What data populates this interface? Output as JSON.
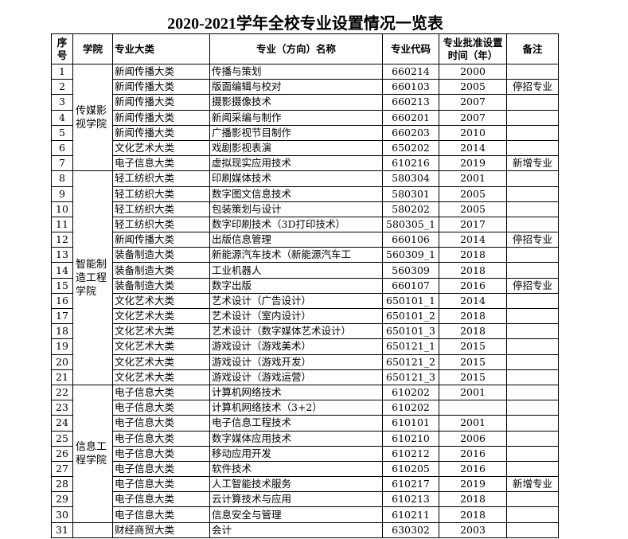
{
  "title": "2020-2021学年全校专业设置情况一览表",
  "headers": [
    "序号",
    "学院",
    "专业大类",
    "专业（方向）名称",
    "专业代码",
    "专业批准设置时间（年）",
    "备注"
  ],
  "colleges": [
    {
      "name": "传媒影视学院",
      "span": 7
    },
    {
      "name": "智能制造工程学院",
      "span": 14
    },
    {
      "name": "信息工程学院",
      "span": 9
    },
    {
      "name": "",
      "span": 1
    }
  ],
  "rows": [
    [
      "1",
      "新闻传播大类",
      "传播与策划",
      "660214",
      "2000",
      ""
    ],
    [
      "2",
      "新闻传播大类",
      "版面编辑与校对",
      "660103",
      "2005",
      "停招专业"
    ],
    [
      "3",
      "新闻传播大类",
      "摄影摄像技术",
      "660213",
      "2007",
      ""
    ],
    [
      "4",
      "新闻传播大类",
      "新闻采编与制作",
      "660201",
      "2007",
      ""
    ],
    [
      "5",
      "新闻传播大类",
      "广播影视节目制作",
      "660203",
      "2010",
      ""
    ],
    [
      "6",
      "文化艺术大类",
      "戏剧影视表演",
      "650202",
      "2014",
      ""
    ],
    [
      "7",
      "电子信息大类",
      "虚拟现实应用技术",
      "610216",
      "2019",
      "新增专业"
    ],
    [
      "8",
      "轻工纺织大类",
      "印刷媒体技术",
      "580304",
      "2001",
      ""
    ],
    [
      "9",
      "轻工纺织大类",
      "数字图文信息技术",
      "580301",
      "2005",
      ""
    ],
    [
      "10",
      "轻工纺织大类",
      "包装策划与设计",
      "580202",
      "2005",
      ""
    ],
    [
      "11",
      "轻工纺织大类",
      "数字印刷技术（3D打印技术）",
      "580305_1",
      "2017",
      ""
    ],
    [
      "12",
      "新闻传播大类",
      "出版信息管理",
      "660106",
      "2014",
      "停招专业"
    ],
    [
      "13",
      "装备制造大类",
      "新能源汽车技术（新能源汽车工",
      "560309_1",
      "2018",
      ""
    ],
    [
      "14",
      "装备制造大类",
      "工业机器人",
      "560309",
      "2018",
      ""
    ],
    [
      "15",
      "装备制造大类",
      "数字出版",
      "660107",
      "2016",
      "停招专业"
    ],
    [
      "16",
      "文化艺术大类",
      "艺术设计（广告设计）",
      "650101_1",
      "2014",
      ""
    ],
    [
      "17",
      "文化艺术大类",
      "艺术设计（室内设计）",
      "650101_2",
      "2018",
      ""
    ],
    [
      "18",
      "文化艺术大类",
      "艺术设计（数字媒体艺术设计）",
      "650101_3",
      "2018",
      ""
    ],
    [
      "19",
      "文化艺术大类",
      "游戏设计（游戏美术）",
      "650121_1",
      "2015",
      ""
    ],
    [
      "20",
      "文化艺术大类",
      "游戏设计（游戏开发）",
      "650121_2",
      "2015",
      ""
    ],
    [
      "21",
      "文化艺术大类",
      "游戏设计（游戏运营）",
      "650121_3",
      "2015",
      ""
    ],
    [
      "22",
      "电子信息大类",
      "计算机网络技术",
      "610202",
      "2001",
      ""
    ],
    [
      "23",
      "电子信息大类",
      "计算机网络技术（3+2）",
      "610202",
      "",
      ""
    ],
    [
      "24",
      "电子信息大类",
      "电子信息工程技术",
      "610101",
      "2001",
      ""
    ],
    [
      "25",
      "电子信息大类",
      "数字媒体应用技术",
      "610210",
      "2006",
      ""
    ],
    [
      "26",
      "电子信息大类",
      "移动应用开发",
      "610212",
      "2016",
      ""
    ],
    [
      "27",
      "电子信息大类",
      "软件技术",
      "610205",
      "2016",
      ""
    ],
    [
      "28",
      "电子信息大类",
      "人工智能技术服务",
      "610217",
      "2019",
      "新增专业"
    ],
    [
      "29",
      "电子信息大类",
      "云计算技术与应用",
      "610213",
      "2018",
      ""
    ],
    [
      "30",
      "电子信息大类",
      "信息安全与管理",
      "610211",
      "2018",
      ""
    ],
    [
      "31",
      "财经商贸大类",
      "会计",
      "630302",
      "2003",
      ""
    ]
  ]
}
